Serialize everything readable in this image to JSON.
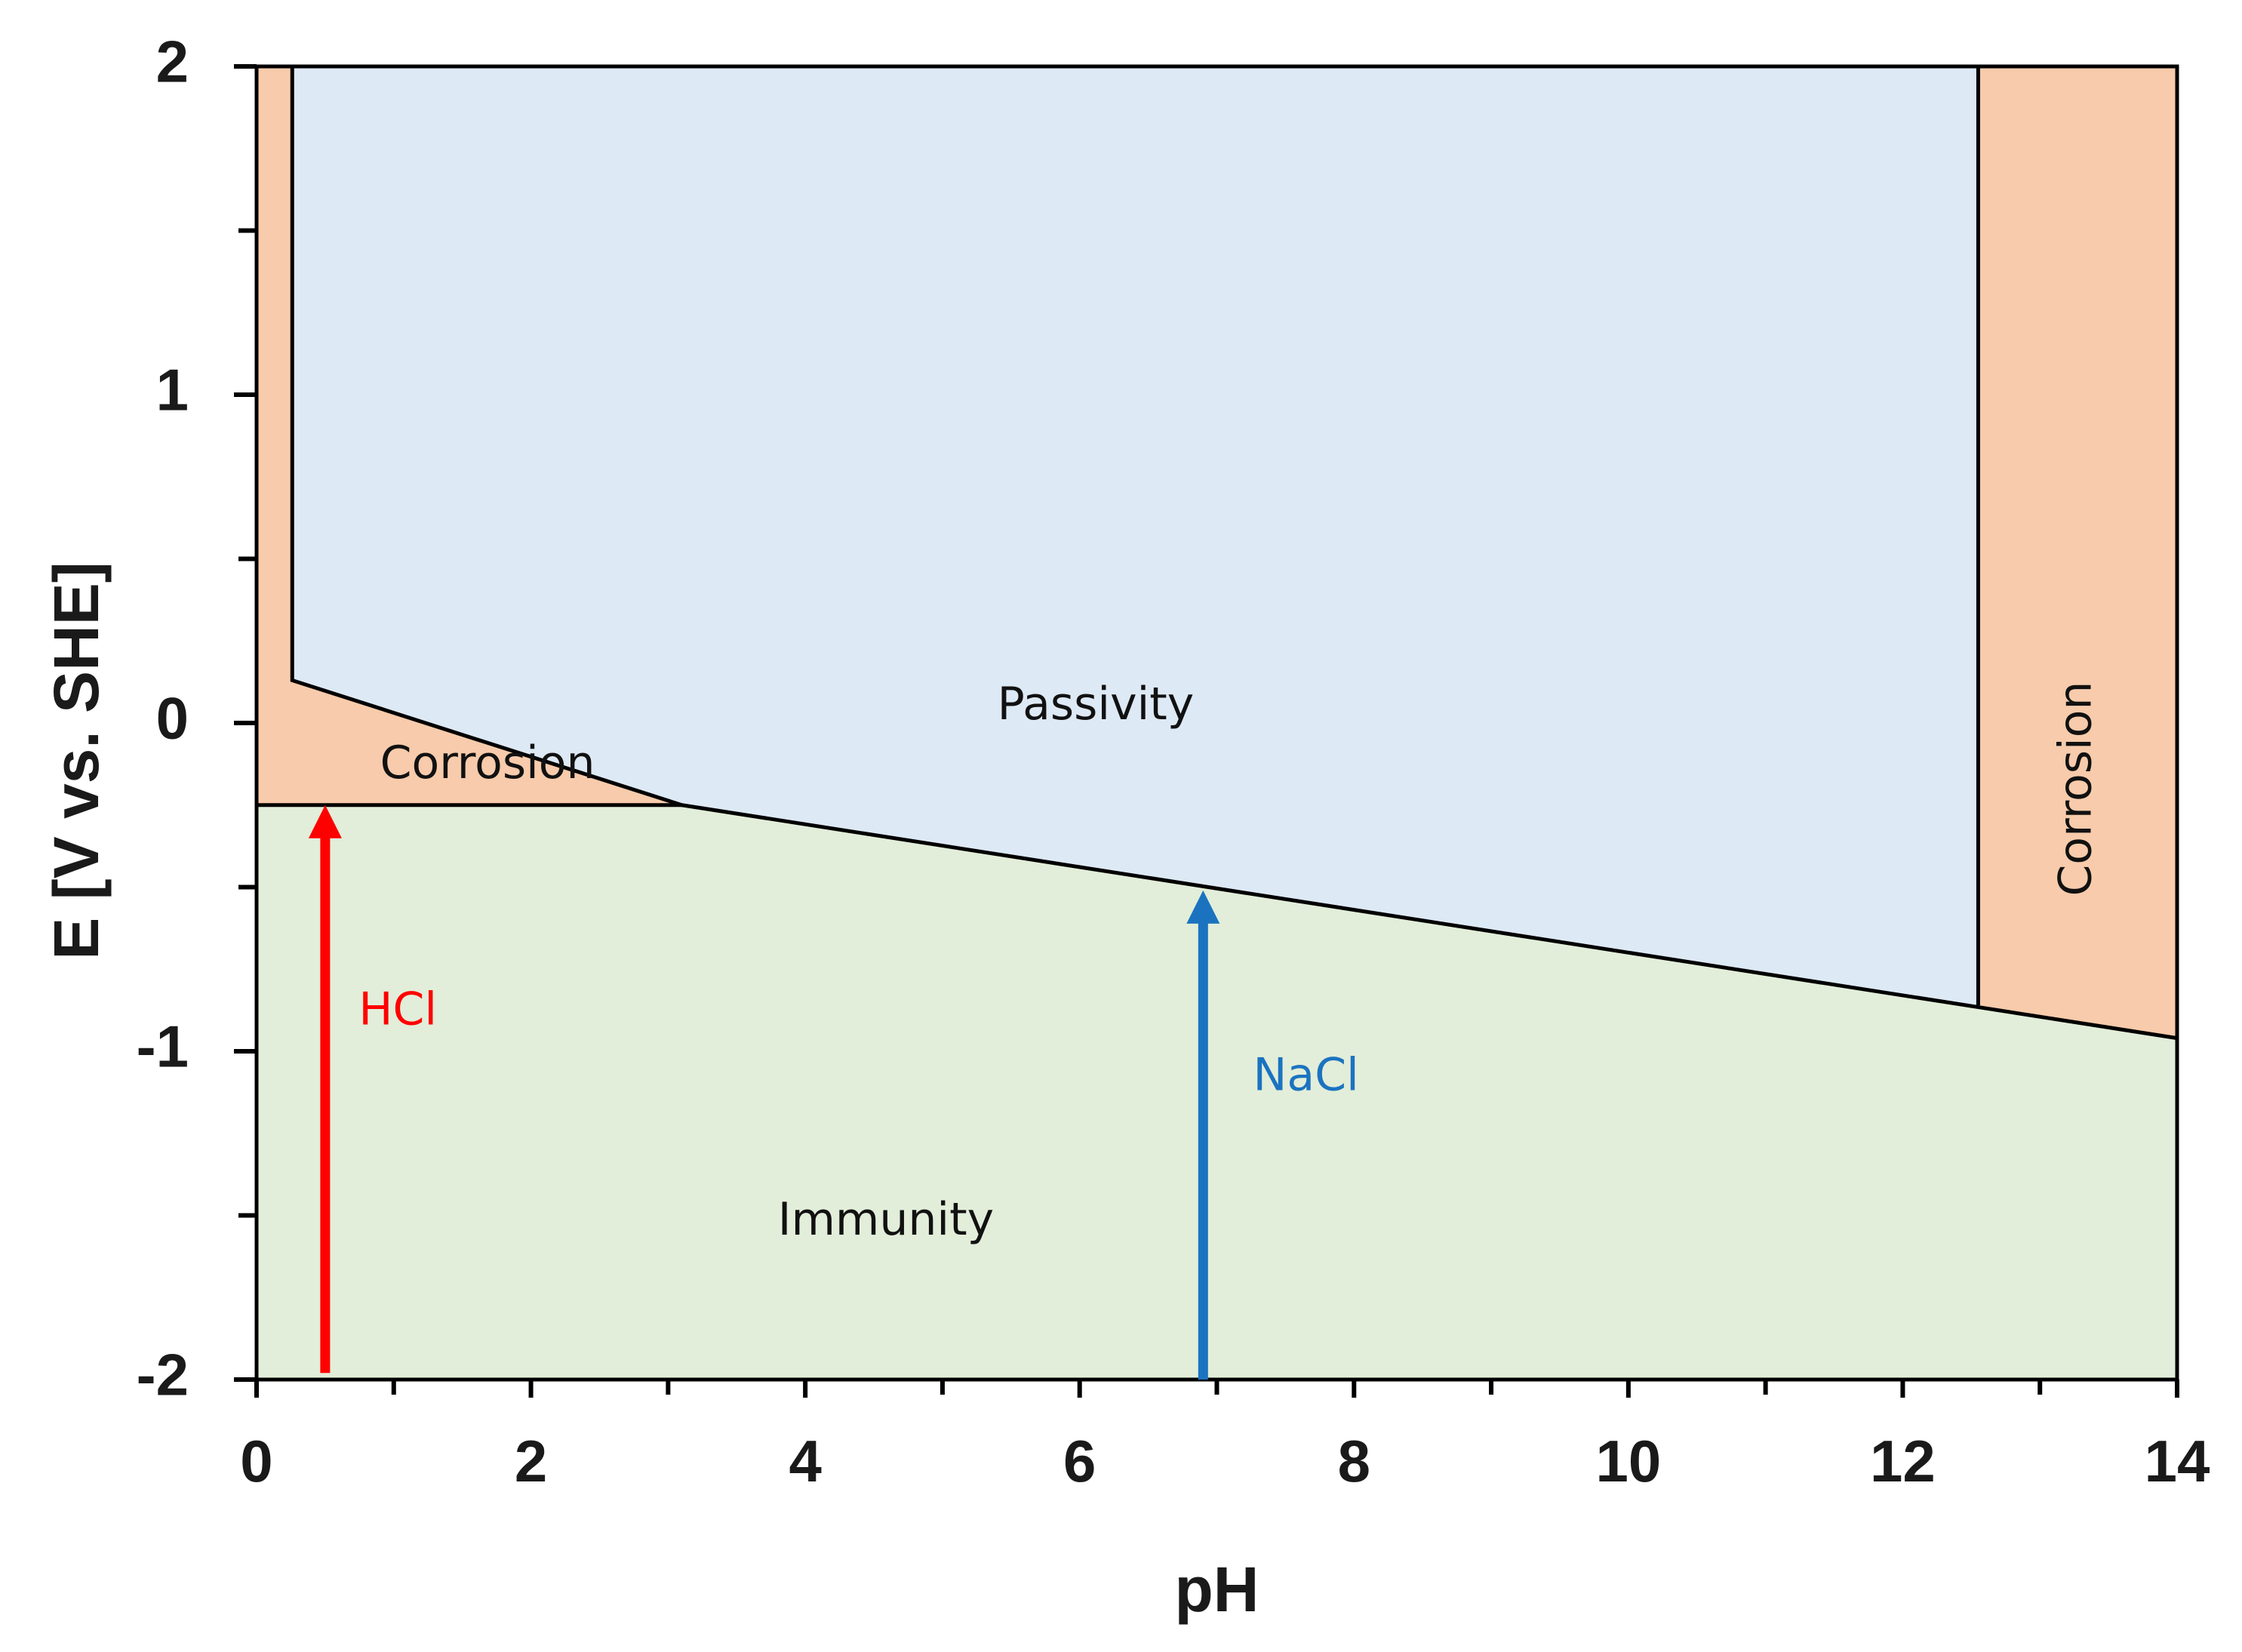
{
  "chart_data": {
    "type": "pourbaix-diagram",
    "xlabel": "pH",
    "ylabel": "E [V vs. SHE]",
    "xlim": [
      0,
      14
    ],
    "ylim": [
      -2,
      2
    ],
    "x_ticks": [
      0,
      2,
      4,
      6,
      8,
      10,
      12,
      14
    ],
    "x_tick_labels": [
      "0",
      "2",
      "4",
      "6",
      "8",
      "10",
      "12",
      "14"
    ],
    "x_minor_ticks": [
      1,
      3,
      5,
      7,
      9,
      11,
      13
    ],
    "y_ticks": [
      -2,
      -1,
      0,
      1,
      2
    ],
    "y_tick_labels": [
      "-2",
      "-1",
      "0",
      "1",
      "2"
    ],
    "y_minor_ticks": [
      -1.5,
      -0.5,
      0.5,
      1.5
    ],
    "colors": {
      "corrosion": "#f7cbab",
      "passivity": "#dde9f5",
      "immunity": "#e2eed9",
      "boundary": "#000000",
      "hcl_arrow": "#ff0000",
      "nacl_arrow": "#1b73c0"
    },
    "regions": [
      {
        "name": "corrosion-acid",
        "label": "Corrosion",
        "color_key": "corrosion",
        "polygon": [
          [
            0,
            2
          ],
          [
            0.26,
            2
          ],
          [
            0.26,
            0.13
          ],
          [
            3.1,
            -0.25
          ],
          [
            0,
            -0.25
          ]
        ],
        "label_pos": [
          0.9,
          -0.13
        ],
        "rotate": 0
      },
      {
        "name": "passivity",
        "label": "Passivity",
        "color_key": "passivity",
        "polygon": [
          [
            0.26,
            2
          ],
          [
            12.55,
            2
          ],
          [
            12.55,
            -0.86
          ],
          [
            3.1,
            -0.25
          ],
          [
            0.26,
            0.13
          ]
        ],
        "label_pos": [
          5.4,
          0.05
        ],
        "rotate": 0
      },
      {
        "name": "corrosion-alkaline",
        "label": "Corrosion",
        "color_key": "corrosion",
        "polygon": [
          [
            12.55,
            2
          ],
          [
            14,
            2
          ],
          [
            14,
            -0.96
          ],
          [
            12.55,
            -0.86
          ]
        ],
        "label_pos": [
          13.28,
          -0.2
        ],
        "rotate": -90
      },
      {
        "name": "immunity",
        "label": "Immunity",
        "color_key": "immunity",
        "polygon": [
          [
            0,
            -0.25
          ],
          [
            3.1,
            -0.25
          ],
          [
            14,
            -0.96
          ],
          [
            14,
            -2
          ],
          [
            0,
            -2
          ]
        ],
        "label_pos": [
          3.8,
          -1.52
        ],
        "rotate": 0
      }
    ],
    "boundaries": [
      [
        [
          0.26,
          2
        ],
        [
          0.26,
          0.13
        ],
        [
          3.1,
          -0.25
        ],
        [
          14,
          -0.96
        ]
      ],
      [
        [
          0,
          -0.25
        ],
        [
          3.1,
          -0.25
        ]
      ],
      [
        [
          12.55,
          2
        ],
        [
          12.55,
          -0.86
        ]
      ]
    ],
    "arrows": [
      {
        "name": "hcl",
        "label": "HCl",
        "color_key": "hcl_arrow",
        "x": 0.5,
        "y_start": -1.98,
        "y_end": -0.25,
        "label_pos": [
          1.03,
          -0.88
        ]
      },
      {
        "name": "nacl",
        "label": "NaCl",
        "color_key": "nacl_arrow",
        "x": 6.9,
        "y_start": -2.0,
        "y_end": -0.51,
        "label_pos": [
          7.65,
          -1.08
        ]
      }
    ]
  }
}
